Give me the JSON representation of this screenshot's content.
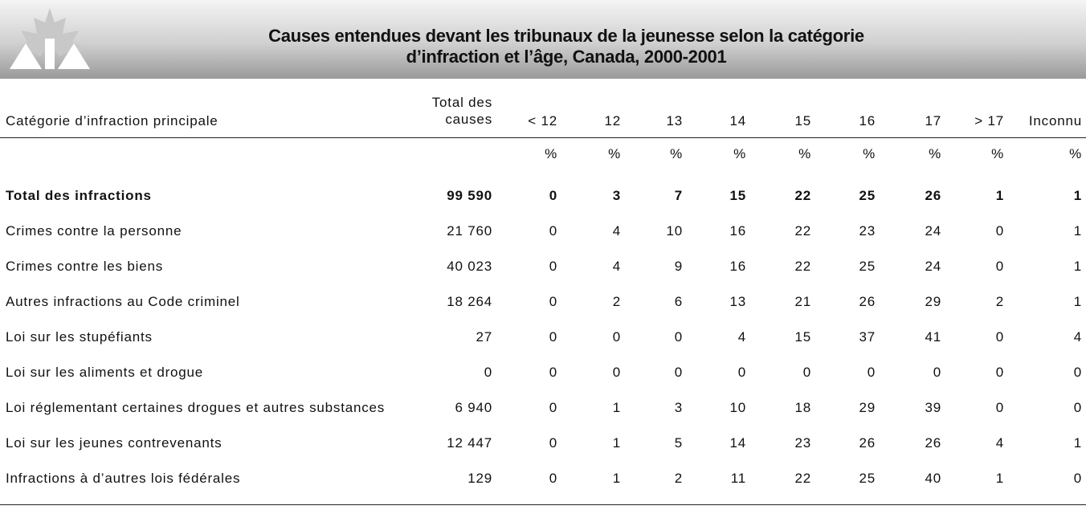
{
  "header": {
    "title": [
      "Causes entendues devant les tribunaux de la jeunesse selon la catégorie",
      "d’infraction et l’âge, Canada, 2000-2001"
    ]
  },
  "table": {
    "columns": [
      "Catégorie d’infraction principale",
      [
        "Total des",
        "causes"
      ],
      "< 12",
      "12",
      "13",
      "14",
      "15",
      "16",
      "17",
      "> 17",
      "Inconnu"
    ],
    "units": [
      "%",
      "%",
      "%",
      "%",
      "%",
      "%",
      "%",
      "%",
      "%"
    ],
    "rows": [
      [
        "Total des infractions",
        "99 590",
        "0",
        "3",
        "7",
        "15",
        "22",
        "25",
        "26",
        "1",
        "1"
      ],
      [
        "Crimes contre la personne",
        "21 760",
        "0",
        "4",
        "10",
        "16",
        "22",
        "23",
        "24",
        "0",
        "1"
      ],
      [
        "Crimes contre les biens",
        "40 023",
        "0",
        "4",
        "9",
        "16",
        "22",
        "25",
        "24",
        "0",
        "1"
      ],
      [
        "Autres infractions au Code criminel",
        "18 264",
        "0",
        "2",
        "6",
        "13",
        "21",
        "26",
        "29",
        "2",
        "1"
      ],
      [
        "Loi sur les stupéfiants",
        "27",
        "0",
        "0",
        "0",
        "4",
        "15",
        "37",
        "41",
        "0",
        "4"
      ],
      [
        "Loi sur les aliments et drogue",
        "0",
        "0",
        "0",
        "0",
        "0",
        "0",
        "0",
        "0",
        "0",
        "0"
      ],
      [
        "Loi réglementant certaines drogues et autres substances",
        "6 940",
        "0",
        "1",
        "3",
        "10",
        "18",
        "29",
        "39",
        "0",
        "0"
      ],
      [
        "Loi sur les jeunes contrevenants",
        "12 447",
        "0",
        "1",
        "5",
        "14",
        "23",
        "26",
        "26",
        "4",
        "1"
      ],
      [
        "Infractions à d’autres lois fédérales",
        "129",
        "0",
        "1",
        "2",
        "11",
        "22",
        "25",
        "40",
        "1",
        "0"
      ]
    ]
  }
}
